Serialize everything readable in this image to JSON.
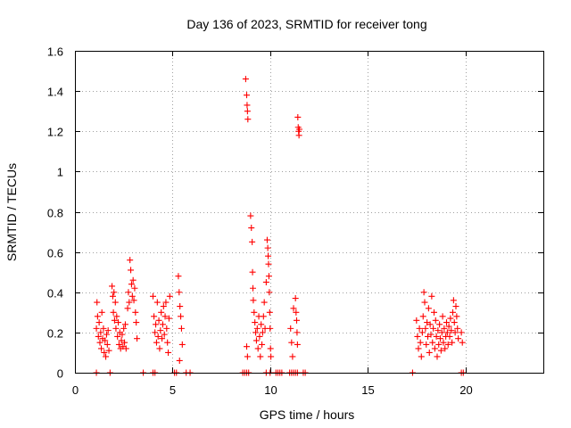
{
  "chart_data": {
    "type": "scatter",
    "title": "Day 136 of 2023, SRMTID for receiver tong",
    "xlabel": "GPS time / hours",
    "ylabel": "SRMTID / TECUs",
    "xlim": [
      0,
      24
    ],
    "ylim": [
      0,
      1.6
    ],
    "x_ticks": [
      0,
      5,
      10,
      15,
      20
    ],
    "x_tick_labels": [
      "0",
      "5",
      "10",
      "15",
      "20"
    ],
    "y_ticks": [
      0,
      0.2,
      0.4,
      0.6,
      0.8,
      1.0,
      1.2,
      1.4,
      1.6
    ],
    "y_tick_labels": [
      "0",
      "0.2",
      "0.4",
      "0.6",
      "0.8",
      "1",
      "1.2",
      "1.4",
      "1.6"
    ],
    "grid": true,
    "marker": "+",
    "marker_color": "#ff0000",
    "series": [
      {
        "name": "SRMTID",
        "points": [
          [
            1.1,
            0.0
          ],
          [
            1.8,
            0.0
          ],
          [
            3.5,
            0.0
          ],
          [
            4.0,
            0.0
          ],
          [
            4.1,
            0.0
          ],
          [
            5.1,
            0.0
          ],
          [
            5.2,
            0.0
          ],
          [
            5.7,
            0.0
          ],
          [
            5.9,
            0.0
          ],
          [
            8.6,
            0.0
          ],
          [
            8.7,
            0.0
          ],
          [
            8.8,
            0.0
          ],
          [
            8.9,
            0.0
          ],
          [
            9.8,
            0.0
          ],
          [
            10.0,
            0.0
          ],
          [
            10.3,
            0.0
          ],
          [
            10.4,
            0.0
          ],
          [
            10.5,
            0.0
          ],
          [
            10.6,
            0.0
          ],
          [
            11.0,
            0.0
          ],
          [
            11.1,
            0.0
          ],
          [
            11.2,
            0.0
          ],
          [
            11.3,
            0.0
          ],
          [
            11.4,
            0.0
          ],
          [
            11.7,
            0.0
          ],
          [
            11.8,
            0.0
          ],
          [
            17.3,
            0.0
          ],
          [
            19.8,
            0.0
          ],
          [
            19.9,
            0.0
          ],
          [
            1.1,
            0.22
          ],
          [
            1.13,
            0.35
          ],
          [
            1.16,
            0.28
          ],
          [
            1.2,
            0.18
          ],
          [
            1.24,
            0.25
          ],
          [
            1.28,
            0.15
          ],
          [
            1.32,
            0.2
          ],
          [
            1.35,
            0.12
          ],
          [
            1.38,
            0.3
          ],
          [
            1.42,
            0.17
          ],
          [
            1.46,
            0.22
          ],
          [
            1.5,
            0.1
          ],
          [
            1.54,
            0.16
          ],
          [
            1.58,
            0.08
          ],
          [
            1.62,
            0.19
          ],
          [
            1.66,
            0.14
          ],
          [
            1.7,
            0.21
          ],
          [
            1.74,
            0.11
          ],
          [
            1.9,
            0.43
          ],
          [
            1.94,
            0.38
          ],
          [
            1.97,
            0.3
          ],
          [
            2.0,
            0.4
          ],
          [
            2.03,
            0.26
          ],
          [
            2.07,
            0.35
          ],
          [
            2.1,
            0.22
          ],
          [
            2.14,
            0.28
          ],
          [
            2.18,
            0.18
          ],
          [
            2.22,
            0.25
          ],
          [
            2.26,
            0.14
          ],
          [
            2.3,
            0.2
          ],
          [
            2.34,
            0.12
          ],
          [
            2.38,
            0.16
          ],
          [
            2.42,
            0.19
          ],
          [
            2.46,
            0.13
          ],
          [
            2.5,
            0.22
          ],
          [
            2.54,
            0.15
          ],
          [
            2.58,
            0.24
          ],
          [
            2.62,
            0.12
          ],
          [
            2.7,
            0.32
          ],
          [
            2.74,
            0.4
          ],
          [
            2.78,
            0.35
          ],
          [
            2.82,
            0.56
          ],
          [
            2.86,
            0.51
          ],
          [
            2.9,
            0.44
          ],
          [
            2.94,
            0.38
          ],
          [
            2.98,
            0.46
          ],
          [
            3.02,
            0.36
          ],
          [
            3.06,
            0.42
          ],
          [
            3.1,
            0.3
          ],
          [
            3.14,
            0.25
          ],
          [
            3.18,
            0.17
          ],
          [
            4.0,
            0.38
          ],
          [
            4.05,
            0.28
          ],
          [
            4.1,
            0.2
          ],
          [
            4.14,
            0.24
          ],
          [
            4.18,
            0.15
          ],
          [
            4.22,
            0.35
          ],
          [
            4.26,
            0.18
          ],
          [
            4.3,
            0.26
          ],
          [
            4.34,
            0.12
          ],
          [
            4.38,
            0.21
          ],
          [
            4.42,
            0.3
          ],
          [
            4.46,
            0.17
          ],
          [
            4.5,
            0.24
          ],
          [
            4.54,
            0.33
          ],
          [
            4.58,
            0.19
          ],
          [
            4.62,
            0.28
          ],
          [
            4.66,
            0.35
          ],
          [
            4.7,
            0.22
          ],
          [
            4.74,
            0.15
          ],
          [
            4.78,
            0.1
          ],
          [
            4.82,
            0.27
          ],
          [
            4.86,
            0.38
          ],
          [
            5.3,
            0.48
          ],
          [
            5.34,
            0.4
          ],
          [
            5.38,
            0.33
          ],
          [
            5.42,
            0.28
          ],
          [
            5.46,
            0.22
          ],
          [
            5.5,
            0.14
          ],
          [
            5.36,
            0.06
          ],
          [
            8.75,
            1.46
          ],
          [
            8.8,
            1.38
          ],
          [
            8.82,
            1.33
          ],
          [
            8.84,
            1.3
          ],
          [
            8.86,
            1.26
          ],
          [
            8.8,
            0.13
          ],
          [
            8.84,
            0.08
          ],
          [
            9.0,
            0.78
          ],
          [
            9.04,
            0.72
          ],
          [
            9.08,
            0.65
          ],
          [
            9.1,
            0.5
          ],
          [
            9.12,
            0.42
          ],
          [
            9.14,
            0.36
          ],
          [
            9.18,
            0.3
          ],
          [
            9.22,
            0.25
          ],
          [
            9.26,
            0.2
          ],
          [
            9.3,
            0.16
          ],
          [
            9.34,
            0.22
          ],
          [
            9.38,
            0.12
          ],
          [
            9.42,
            0.28
          ],
          [
            9.46,
            0.18
          ],
          [
            9.5,
            0.08
          ],
          [
            9.54,
            0.24
          ],
          [
            9.58,
            0.14
          ],
          [
            9.62,
            0.2
          ],
          [
            9.66,
            0.28
          ],
          [
            9.7,
            0.35
          ],
          [
            9.74,
            0.22
          ],
          [
            9.8,
            0.45
          ],
          [
            9.85,
            0.66
          ],
          [
            9.88,
            0.62
          ],
          [
            9.9,
            0.58
          ],
          [
            9.92,
            0.54
          ],
          [
            9.94,
            0.48
          ],
          [
            9.96,
            0.4
          ],
          [
            9.98,
            0.3
          ],
          [
            10.0,
            0.22
          ],
          [
            10.02,
            0.12
          ],
          [
            10.04,
            0.08
          ],
          [
            11.05,
            0.22
          ],
          [
            11.1,
            0.15
          ],
          [
            11.15,
            0.08
          ],
          [
            11.2,
            0.32
          ],
          [
            11.3,
            0.37
          ],
          [
            11.33,
            0.3
          ],
          [
            11.36,
            0.26
          ],
          [
            11.38,
            0.2
          ],
          [
            11.4,
            0.14
          ],
          [
            11.42,
            1.27
          ],
          [
            11.44,
            1.22
          ],
          [
            11.46,
            1.2
          ],
          [
            11.48,
            1.18
          ],
          [
            11.5,
            1.21
          ],
          [
            17.5,
            0.26
          ],
          [
            17.55,
            0.18
          ],
          [
            17.6,
            0.12
          ],
          [
            17.65,
            0.22
          ],
          [
            17.7,
            0.15
          ],
          [
            17.75,
            0.08
          ],
          [
            17.8,
            0.2
          ],
          [
            17.84,
            0.28
          ],
          [
            17.88,
            0.4
          ],
          [
            17.92,
            0.35
          ],
          [
            17.96,
            0.22
          ],
          [
            18.0,
            0.14
          ],
          [
            18.04,
            0.25
          ],
          [
            18.08,
            0.18
          ],
          [
            18.12,
            0.32
          ],
          [
            18.16,
            0.1
          ],
          [
            18.2,
            0.24
          ],
          [
            18.24,
            0.19
          ],
          [
            18.28,
            0.38
          ],
          [
            18.32,
            0.15
          ],
          [
            18.36,
            0.22
          ],
          [
            18.4,
            0.3
          ],
          [
            18.44,
            0.12
          ],
          [
            18.48,
            0.26
          ],
          [
            18.52,
            0.18
          ],
          [
            18.56,
            0.08
          ],
          [
            18.6,
            0.21
          ],
          [
            18.64,
            0.14
          ],
          [
            18.68,
            0.24
          ],
          [
            18.72,
            0.17
          ],
          [
            18.76,
            0.11
          ],
          [
            18.8,
            0.2
          ],
          [
            18.84,
            0.28
          ],
          [
            18.88,
            0.15
          ],
          [
            18.92,
            0.22
          ],
          [
            18.96,
            0.12
          ],
          [
            19.0,
            0.18
          ],
          [
            19.04,
            0.25
          ],
          [
            19.08,
            0.2
          ],
          [
            19.12,
            0.14
          ],
          [
            19.16,
            0.23
          ],
          [
            19.2,
            0.18
          ],
          [
            19.24,
            0.27
          ],
          [
            19.28,
            0.21
          ],
          [
            19.32,
            0.15
          ],
          [
            19.36,
            0.3
          ],
          [
            19.4,
            0.36
          ],
          [
            19.44,
            0.25
          ],
          [
            19.48,
            0.2
          ],
          [
            19.52,
            0.33
          ],
          [
            19.56,
            0.28
          ],
          [
            19.6,
            0.22
          ],
          [
            19.64,
            0.17
          ],
          [
            19.8,
            0.2
          ],
          [
            19.85,
            0.15
          ]
        ]
      }
    ]
  }
}
